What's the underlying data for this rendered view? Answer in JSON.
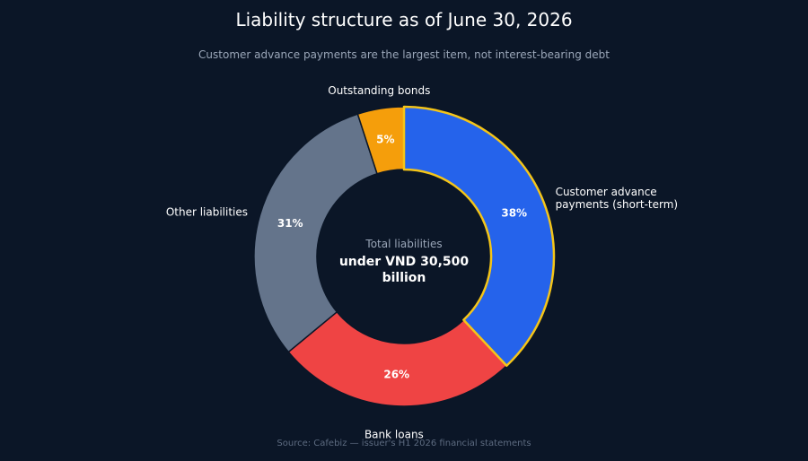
{
  "colors": {
    "background": "#0b1627",
    "highlight_outline": "#f5c518"
  },
  "chart_data": {
    "type": "pie",
    "title": "Liability structure as of June 30, 2026",
    "subtitle": "Customer advance payments are the largest item, not interest-bearing debt",
    "source": "Source: Cafebiz — issuer's H1 2026 financial statements",
    "center": {
      "label": "Total liabilities",
      "value_lines": [
        "under VND 30,500",
        "billion"
      ]
    },
    "slices": [
      {
        "label_lines": [
          "Customer advance",
          "payments (short-term)"
        ],
        "value": 38,
        "display": "38%",
        "color": "#2563eb",
        "highlight": true
      },
      {
        "label_lines": [
          "Bank loans"
        ],
        "value": 26,
        "display": "26%",
        "color": "#ef4444",
        "highlight": false
      },
      {
        "label_lines": [
          "Other liabilities"
        ],
        "value": 31,
        "display": "31%",
        "color": "#64748b",
        "highlight": false
      },
      {
        "label_lines": [
          "Outstanding bonds"
        ],
        "value": 5,
        "display": "5%",
        "color": "#f59e0b",
        "highlight": false
      }
    ]
  }
}
